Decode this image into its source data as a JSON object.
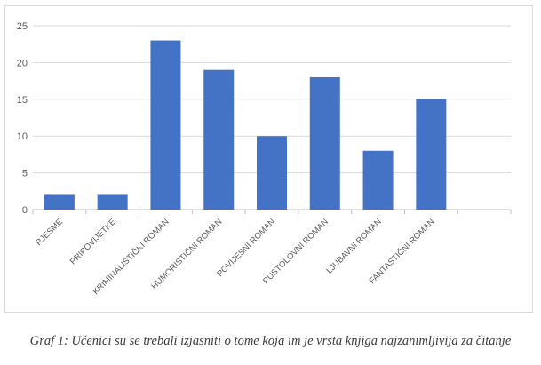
{
  "chart_data": {
    "type": "bar",
    "categories": [
      "PJESME",
      "PRIPOVIJETKE",
      "KRIMINALISTIČKI ROMAN",
      "HUMORISTIČNI ROMAN",
      "POVIJESNI ROMAN",
      "PUSTOLOVNI ROMAN",
      "LJUBAVNI ROMAN",
      "FANTASTIČNI ROMAN",
      ""
    ],
    "values": [
      2,
      2,
      23,
      19,
      10,
      18,
      8,
      15,
      null
    ],
    "yticks": [
      "0",
      "5",
      "10",
      "15",
      "20",
      "25"
    ],
    "ylim": [
      0,
      25
    ],
    "grid": true,
    "color": "#4472c4"
  },
  "caption": "Graf 1: Učenici su se trebali izjasniti o tome koja im je vrsta knjiga najzanimljivija za čitanje"
}
